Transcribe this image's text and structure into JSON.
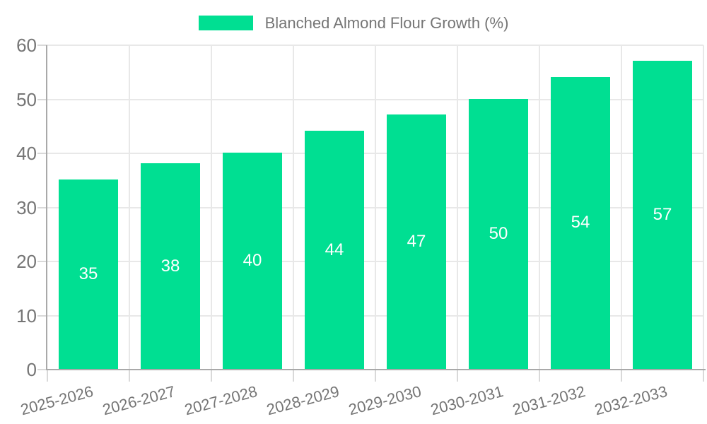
{
  "chart_data": {
    "type": "bar",
    "title": "",
    "series_name": "Blanched Almond Flour Growth (%)",
    "categories": [
      "2025-2026",
      "2026-2027",
      "2027-2028",
      "2028-2029",
      "2029-2030",
      "2030-2031",
      "2031-2032",
      "2032-2033"
    ],
    "values": [
      35,
      38,
      40,
      44,
      47,
      50,
      54,
      57
    ],
    "xlabel": "",
    "ylabel": "",
    "ylim": [
      0,
      60
    ],
    "yticks": [
      0,
      10,
      20,
      30,
      40,
      50,
      60
    ],
    "grid": true,
    "legend_position": "top-center",
    "value_labels": "inside-center",
    "colors": {
      "bar": "#00DF92",
      "value_label": "#FFFFFF",
      "axis_text": "#757575",
      "axis_line": "#A9A9A9",
      "gridline": "#E8E8E8",
      "tick": "#D9D9D9",
      "background": "#FFFFFF"
    }
  }
}
